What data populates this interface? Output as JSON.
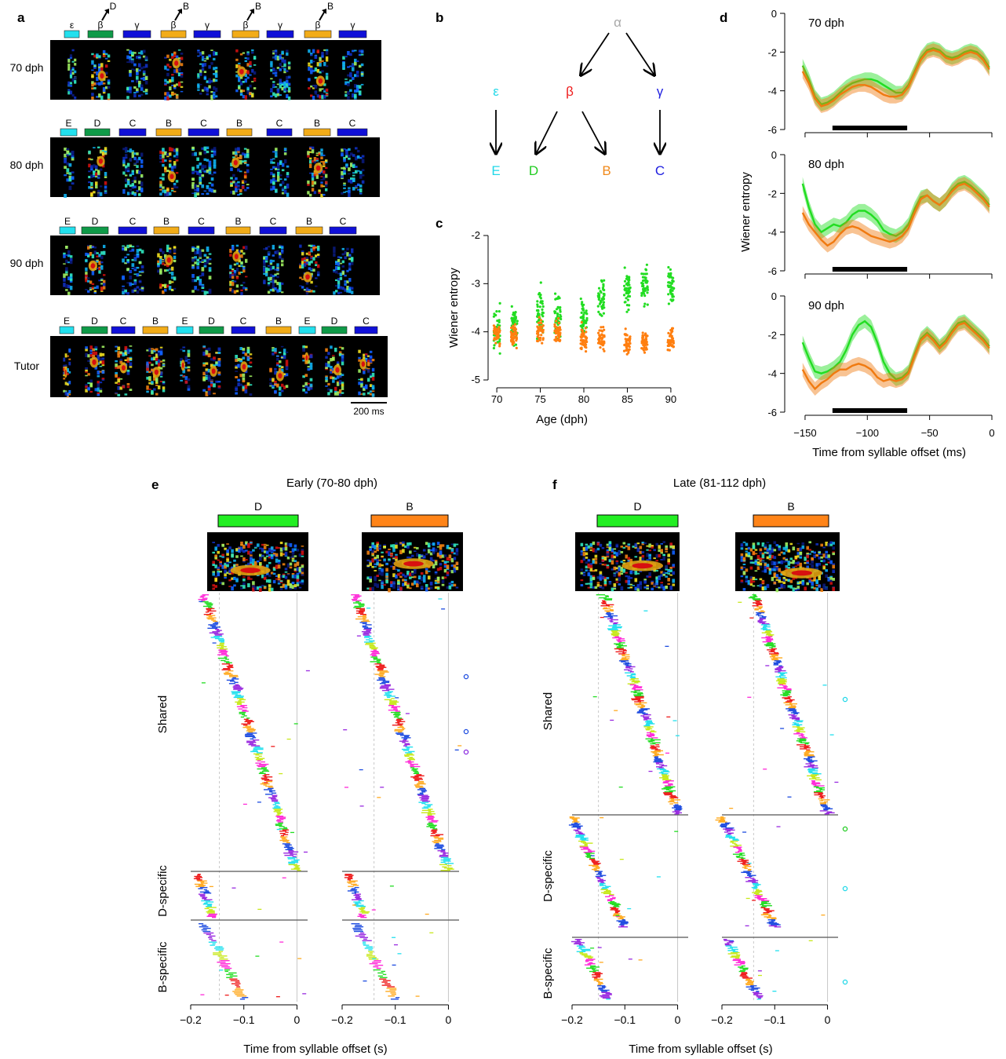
{
  "panel_letters": [
    "a",
    "b",
    "c",
    "d",
    "e",
    "f"
  ],
  "panel_a": {
    "rows": [
      {
        "label": "70 dph",
        "syllables": [
          {
            "text": "ε",
            "color": "#22e0ee"
          },
          {
            "text": "β",
            "color": "#0f9a48"
          },
          {
            "text": "γ",
            "color": "#1010d8"
          },
          {
            "text": "β",
            "color": "#f2ac18"
          },
          {
            "text": "γ",
            "color": "#1010d8"
          },
          {
            "text": "β",
            "color": "#f2ac18"
          },
          {
            "text": "γ",
            "color": "#1010d8"
          },
          {
            "text": "β",
            "color": "#f2ac18"
          },
          {
            "text": "γ",
            "color": "#1010d8"
          }
        ],
        "arrow_labels": [
          "D",
          "B",
          "B",
          "B"
        ]
      },
      {
        "label": "80 dph",
        "syllables": [
          {
            "text": "E",
            "color": "#22e0ee"
          },
          {
            "text": "D",
            "color": "#0f9a48"
          },
          {
            "text": "C",
            "color": "#1010d8"
          },
          {
            "text": "B",
            "color": "#f2ac18"
          },
          {
            "text": "C",
            "color": "#1010d8"
          },
          {
            "text": "B",
            "color": "#f2ac18"
          },
          {
            "text": "C",
            "color": "#1010d8"
          },
          {
            "text": "B",
            "color": "#f2ac18"
          },
          {
            "text": "C",
            "color": "#1010d8"
          }
        ]
      },
      {
        "label": "90 dph",
        "syllables": [
          {
            "text": "E",
            "color": "#22e0ee"
          },
          {
            "text": "D",
            "color": "#0f9a48"
          },
          {
            "text": "C",
            "color": "#1010d8"
          },
          {
            "text": "B",
            "color": "#f2ac18"
          },
          {
            "text": "C",
            "color": "#1010d8"
          },
          {
            "text": "B",
            "color": "#f2ac18"
          },
          {
            "text": "C",
            "color": "#1010d8"
          },
          {
            "text": "B",
            "color": "#f2ac18"
          },
          {
            "text": "C",
            "color": "#1010d8"
          }
        ]
      },
      {
        "label": "Tutor",
        "syllables": [
          {
            "text": "E",
            "color": "#22e0ee"
          },
          {
            "text": "D",
            "color": "#0f9a48"
          },
          {
            "text": "C",
            "color": "#1010d8"
          },
          {
            "text": "B",
            "color": "#f2ac18"
          },
          {
            "text": "E",
            "color": "#22e0ee"
          },
          {
            "text": "D",
            "color": "#0f9a48"
          },
          {
            "text": "C",
            "color": "#1010d8"
          },
          {
            "text": "B",
            "color": "#f2ac18"
          },
          {
            "text": "E",
            "color": "#22e0ee"
          },
          {
            "text": "D",
            "color": "#0f9a48"
          },
          {
            "text": "C",
            "color": "#1010d8"
          }
        ]
      }
    ],
    "scale_bar": "200 ms"
  },
  "panel_b": {
    "nodes": [
      {
        "id": "alpha",
        "text": "α",
        "color": "#a8a8a8"
      },
      {
        "id": "epsilon",
        "text": "ε",
        "color": "#22d8e8"
      },
      {
        "id": "beta",
        "text": "β",
        "color": "#ee1c1c"
      },
      {
        "id": "gamma",
        "text": "γ",
        "color": "#2020e0"
      },
      {
        "id": "E",
        "text": "E",
        "color": "#22d8e8"
      },
      {
        "id": "D",
        "text": "D",
        "color": "#22cc22"
      },
      {
        "id": "B",
        "text": "B",
        "color": "#f08a1c"
      },
      {
        "id": "C",
        "text": "C",
        "color": "#2020e0"
      }
    ],
    "edges": [
      [
        "alpha",
        "beta"
      ],
      [
        "alpha",
        "gamma"
      ],
      [
        "epsilon",
        "E"
      ],
      [
        "beta",
        "D"
      ],
      [
        "beta",
        "B"
      ],
      [
        "gamma",
        "C"
      ]
    ]
  },
  "panel_c": {
    "chart_data": {
      "type": "scatter",
      "xlabel": "Age (dph)",
      "ylabel": "Wiener entropy",
      "xticks": [
        70,
        75,
        80,
        85,
        90
      ],
      "yticks": [
        -5,
        -4,
        -3,
        -2
      ],
      "ylim": [
        -5,
        -2
      ],
      "xlim": [
        69,
        91
      ],
      "series": [
        {
          "color": "#22dd22",
          "x": [
            70,
            72,
            75,
            77,
            80,
            82,
            85,
            87,
            90
          ],
          "y_mean": [
            -3.95,
            -3.9,
            -3.6,
            -3.65,
            -3.75,
            -3.3,
            -3.1,
            -3.05,
            -3.05
          ],
          "y_spread": [
            0.35,
            0.35,
            0.4,
            0.4,
            0.4,
            0.4,
            0.35,
            0.35,
            0.35
          ]
        },
        {
          "color": "#ff7f10",
          "x": [
            70,
            72,
            75,
            77,
            80,
            82,
            85,
            87,
            90
          ],
          "y_mean": [
            -4.05,
            -4.05,
            -4.0,
            -4.0,
            -4.15,
            -4.15,
            -4.2,
            -4.2,
            -4.2
          ],
          "y_spread": [
            0.2,
            0.2,
            0.2,
            0.2,
            0.22,
            0.22,
            0.22,
            0.22,
            0.22
          ]
        }
      ]
    }
  },
  "panel_d": {
    "ylabel": "Wiener entropy",
    "xlabel": "Time from syllable offset (ms)",
    "xticks": [
      -150,
      -100,
      -50,
      0
    ],
    "yticks": [
      0,
      -2,
      -4,
      -6
    ],
    "xlim": [
      -155,
      0
    ],
    "ylim": [
      -6,
      0
    ],
    "bar_range": [
      -128,
      -68
    ],
    "chart_data": [
      {
        "type": "line",
        "label": "70 dph",
        "x": [
          -152,
          -147,
          -142,
          -137,
          -132,
          -127,
          -122,
          -117,
          -112,
          -107,
          -102,
          -97,
          -92,
          -87,
          -82,
          -77,
          -72,
          -67,
          -62,
          -57,
          -52,
          -47,
          -42,
          -37,
          -32,
          -27,
          -22,
          -17,
          -12,
          -7,
          -2
        ],
        "series": [
          {
            "color": "#22dd22",
            "y": [
              -2.7,
              -3.4,
              -4.3,
              -4.7,
              -4.6,
              -4.4,
              -4.1,
              -3.8,
              -3.6,
              -3.5,
              -3.4,
              -3.4,
              -3.5,
              -3.7,
              -3.9,
              -4.1,
              -4.1,
              -3.7,
              -3.0,
              -2.3,
              -1.9,
              -1.8,
              -1.9,
              -2.2,
              -2.3,
              -2.2,
              -2.0,
              -1.9,
              -2.0,
              -2.3,
              -2.8
            ]
          },
          {
            "color": "#f07a10",
            "y": [
              -3.0,
              -3.6,
              -4.4,
              -4.8,
              -4.7,
              -4.5,
              -4.2,
              -4.0,
              -3.8,
              -3.7,
              -3.7,
              -3.8,
              -4.0,
              -4.2,
              -4.3,
              -4.3,
              -4.2,
              -3.8,
              -3.1,
              -2.4,
              -2.0,
              -1.9,
              -2.0,
              -2.3,
              -2.4,
              -2.3,
              -2.1,
              -2.0,
              -2.1,
              -2.4,
              -2.9
            ]
          }
        ]
      },
      {
        "type": "line",
        "label": "80 dph",
        "x": [
          -152,
          -147,
          -142,
          -137,
          -132,
          -127,
          -122,
          -117,
          -112,
          -107,
          -102,
          -97,
          -92,
          -87,
          -82,
          -77,
          -72,
          -67,
          -62,
          -57,
          -52,
          -47,
          -42,
          -37,
          -32,
          -27,
          -22,
          -17,
          -12,
          -7,
          -2
        ],
        "series": [
          {
            "color": "#22dd22",
            "y": [
              -1.5,
              -2.7,
              -3.6,
              -4.0,
              -3.8,
              -3.6,
              -3.7,
              -3.5,
              -3.1,
              -2.9,
              -2.9,
              -3.1,
              -3.4,
              -3.9,
              -4.1,
              -4.2,
              -4.0,
              -3.6,
              -2.8,
              -2.2,
              -2.1,
              -2.4,
              -2.6,
              -2.3,
              -1.8,
              -1.5,
              -1.4,
              -1.6,
              -1.9,
              -2.2,
              -2.6
            ]
          },
          {
            "color": "#f07a10",
            "y": [
              -3.0,
              -3.6,
              -4.0,
              -4.4,
              -4.7,
              -4.5,
              -4.1,
              -3.8,
              -3.7,
              -3.8,
              -4.0,
              -4.2,
              -4.3,
              -4.4,
              -4.5,
              -4.4,
              -4.2,
              -3.8,
              -3.0,
              -2.3,
              -2.1,
              -2.4,
              -2.6,
              -2.3,
              -1.9,
              -1.6,
              -1.5,
              -1.7,
              -2.0,
              -2.3,
              -2.7
            ]
          }
        ]
      },
      {
        "type": "line",
        "label": "90 dph",
        "x": [
          -152,
          -147,
          -142,
          -137,
          -132,
          -127,
          -122,
          -117,
          -112,
          -107,
          -102,
          -97,
          -92,
          -87,
          -82,
          -77,
          -72,
          -67,
          -62,
          -57,
          -52,
          -47,
          -42,
          -37,
          -32,
          -27,
          -22,
          -17,
          -12,
          -7,
          -2
        ],
        "series": [
          {
            "color": "#22dd22",
            "y": [
              -2.4,
              -3.2,
              -3.9,
              -4.0,
              -3.9,
              -3.7,
              -3.4,
              -2.8,
              -2.0,
              -1.5,
              -1.3,
              -1.6,
              -2.4,
              -3.4,
              -4.0,
              -4.3,
              -4.2,
              -3.9,
              -3.0,
              -2.2,
              -1.9,
              -2.2,
              -2.6,
              -2.3,
              -1.8,
              -1.4,
              -1.3,
              -1.6,
              -1.9,
              -2.2,
              -2.6
            ]
          },
          {
            "color": "#f07a10",
            "y": [
              -3.8,
              -4.4,
              -4.8,
              -4.5,
              -4.3,
              -4.0,
              -3.8,
              -3.8,
              -3.6,
              -3.5,
              -3.6,
              -3.8,
              -4.2,
              -4.4,
              -4.3,
              -4.4,
              -4.3,
              -4.0,
              -3.1,
              -2.3,
              -2.0,
              -2.3,
              -2.7,
              -2.4,
              -1.9,
              -1.5,
              -1.4,
              -1.7,
              -2.0,
              -2.3,
              -2.7
            ]
          }
        ]
      }
    ]
  },
  "panel_e": {
    "title": "Early (70-80 dph)",
    "columns": [
      {
        "label": "D",
        "color": "#22ee22"
      },
      {
        "label": "B",
        "color": "#ff8418"
      }
    ],
    "group_labels": [
      "Shared",
      "D-specific",
      "B-specific"
    ],
    "xticks": [
      -0.2,
      -0.1,
      0
    ],
    "xlabel": "Time from syllable offset (s)",
    "circle_colors": [
      "#1f4de0",
      "#1f4de0",
      "#8b2be0"
    ]
  },
  "panel_f": {
    "title": "Late (81-112 dph)",
    "columns": [
      {
        "label": "D",
        "color": "#22ee22"
      },
      {
        "label": "B",
        "color": "#ff8418"
      }
    ],
    "group_labels": [
      "Shared",
      "D-specific",
      "B-specific"
    ],
    "xticks": [
      -0.2,
      -0.1,
      0
    ],
    "xlabel": "Time from syllable offset (s)",
    "circle_colors": [
      "#22d8e8",
      "#22cc22",
      "#22d8e8",
      "#22d8e8"
    ]
  },
  "raster_palette": [
    "#ff2ad8",
    "#22dd22",
    "#ee1c1c",
    "#ffaa20",
    "#1f4de0",
    "#9a2be0",
    "#22e0ee",
    "#c8e81c"
  ]
}
